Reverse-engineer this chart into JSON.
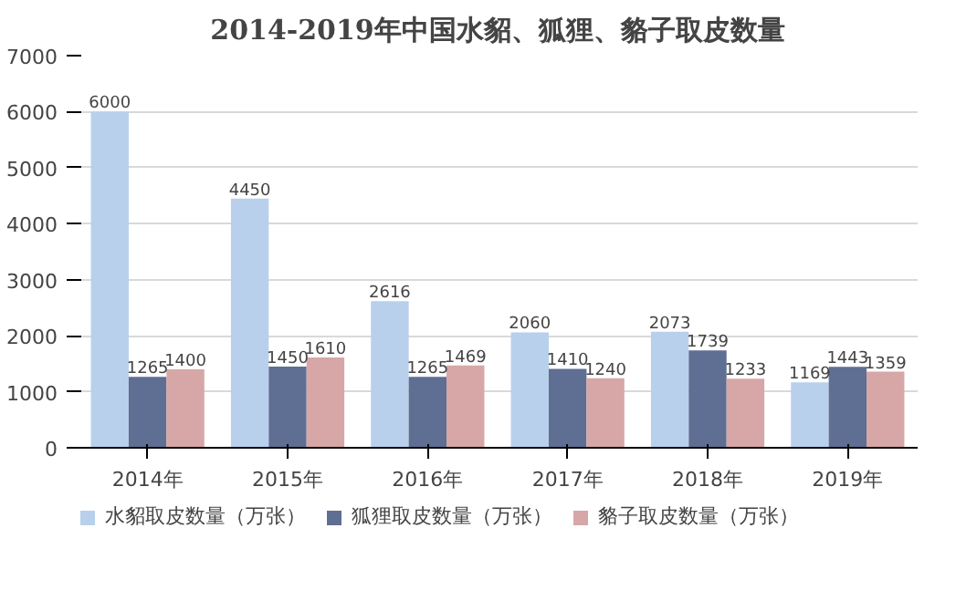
{
  "chart_data": {
    "type": "bar",
    "title": "2014-2019年中国水貂、狐狸、貉子取皮数量",
    "categories": [
      "2014年",
      "2015年",
      "2016年",
      "2017年",
      "2018年",
      "2019年"
    ],
    "series": [
      {
        "name": "水貂取皮数量（万张）",
        "color": "#b8d0ec",
        "values": [
          6000,
          4450,
          2616,
          2060,
          2073,
          1169
        ]
      },
      {
        "name": "狐狸取皮数量（万张）",
        "color": "#5f6e93",
        "values": [
          1265,
          1450,
          1265,
          1410,
          1739,
          1443
        ]
      },
      {
        "name": "貉子取皮数量（万张）",
        "color": "#d6a7a6",
        "values": [
          1400,
          1610,
          1469,
          1240,
          1233,
          1359
        ]
      }
    ],
    "ylim": [
      0,
      7000
    ],
    "yticks": [
      0,
      1000,
      2000,
      3000,
      4000,
      5000,
      6000,
      7000
    ],
    "grid": "y",
    "legend": "bottom",
    "data_labels": true
  }
}
